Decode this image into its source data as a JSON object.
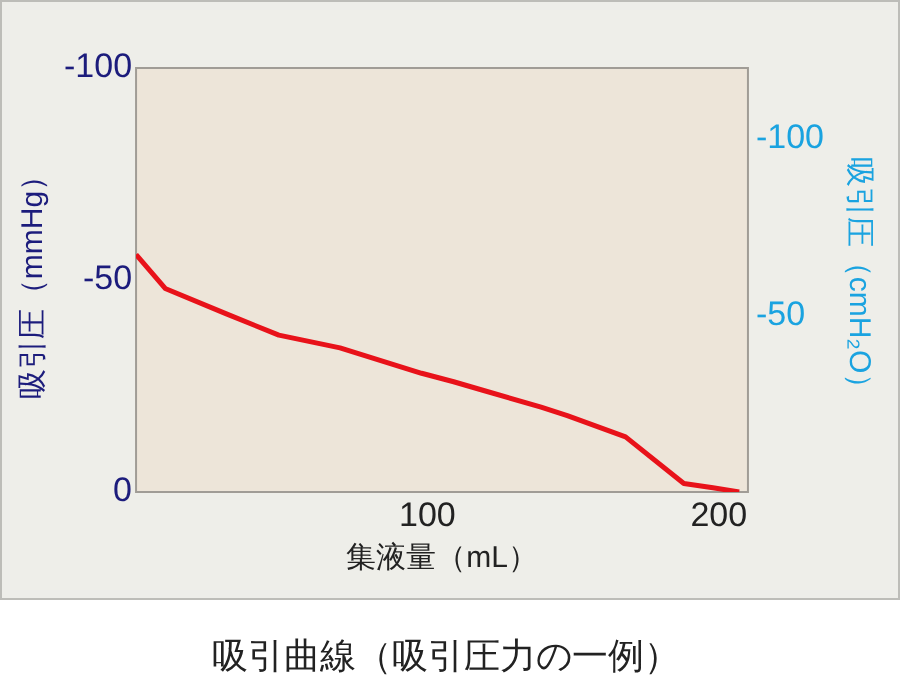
{
  "chart_data": {
    "type": "line",
    "title": "吸引曲線（吸引圧力の一例）",
    "xlabel": "集液量（mL）",
    "ylabel": "吸引圧（mmHg）",
    "y2label": "吸引圧（cmH₂O）",
    "x": [
      0,
      10,
      31,
      49,
      70,
      98,
      109,
      119,
      139,
      148,
      168,
      188,
      198,
      207
    ],
    "series": [
      {
        "color": "#e8121a",
        "values": [
          -56,
          -48,
          -42,
          -37,
          -34,
          -28,
          -26,
          -24,
          -20,
          -18,
          -13,
          -2,
          -1,
          0
        ]
      }
    ],
    "xlim": [
      0,
      210
    ],
    "xticks": [
      100,
      200
    ],
    "ylim": [
      0,
      -100
    ],
    "yticks": [
      -100,
      -50,
      0
    ],
    "y2lim": [
      0,
      -120
    ],
    "y2ticks": [
      -100,
      -50
    ],
    "grid": false,
    "legend": false,
    "marker": "none",
    "line_style": "solid"
  }
}
